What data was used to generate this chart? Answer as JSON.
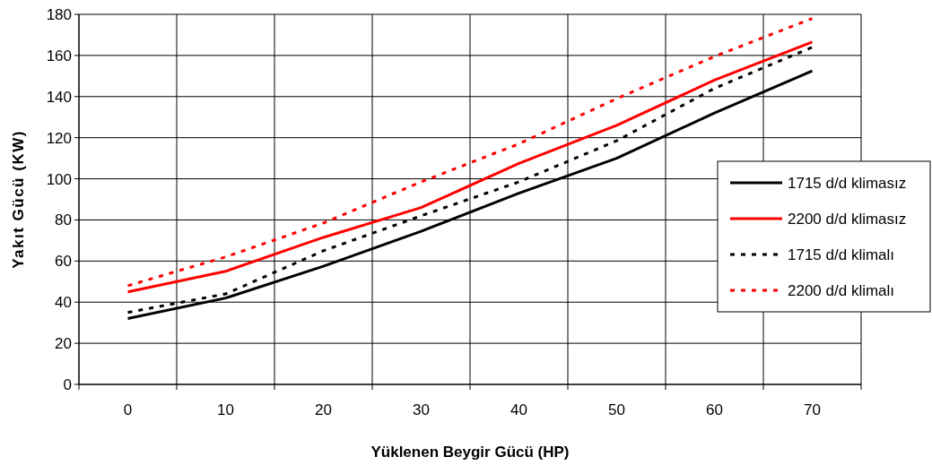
{
  "chart_data": {
    "type": "line",
    "xlabel": "Yüklenen Beygir Gücü (HP)",
    "ylabel": "Yakıt Gücü (KW)",
    "categories": [
      "0",
      "10",
      "20",
      "30",
      "40",
      "50",
      "60",
      "70"
    ],
    "ylim": [
      0,
      180
    ],
    "yticks": [
      0,
      20,
      40,
      60,
      80,
      100,
      120,
      140,
      160,
      180
    ],
    "grid": true,
    "legend": "right",
    "marker": "none",
    "series": [
      {
        "name": "1715 d/d klimasız",
        "color": "#000000",
        "line_style": "solid",
        "values": [
          32,
          42,
          57.5,
          74.5,
          93,
          110,
          132,
          152.5
        ]
      },
      {
        "name": "2200 d/d klimasız",
        "color": "#ff0000",
        "line_style": "solid",
        "values": [
          45,
          55,
          71.5,
          86,
          107.5,
          126,
          148,
          166.5
        ]
      },
      {
        "name": "1715 d/d klimalı",
        "color": "#000000",
        "line_style": "dotted",
        "values": [
          35,
          44,
          65,
          82,
          98.5,
          118.5,
          144,
          164
        ]
      },
      {
        "name": "2200 d/d klimalı",
        "color": "#ff0000",
        "line_style": "dotted",
        "values": [
          48,
          62,
          78.5,
          98.5,
          117,
          139,
          159.5,
          178
        ]
      }
    ]
  }
}
